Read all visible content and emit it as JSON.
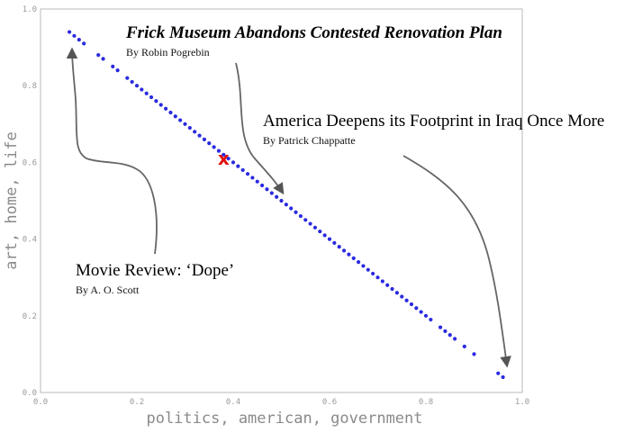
{
  "chart_data": {
    "type": "scatter",
    "xlabel": "politics, american, government",
    "ylabel": "art, home, life",
    "xlim": [
      0.0,
      1.0
    ],
    "ylim": [
      0.0,
      1.0
    ],
    "xticks": [
      "0.0",
      "0.2",
      "0.4",
      "0.6",
      "0.8",
      "1.0"
    ],
    "yticks": [
      "0.0",
      "0.2",
      "0.4",
      "0.6",
      "0.8",
      "1.0"
    ],
    "point_color": "#2a2ae0",
    "marker_color": "#e21010",
    "grid": false,
    "points": [
      [
        0.06,
        0.94
      ],
      [
        0.07,
        0.93
      ],
      [
        0.08,
        0.92
      ],
      [
        0.09,
        0.91
      ],
      [
        0.12,
        0.88
      ],
      [
        0.13,
        0.87
      ],
      [
        0.15,
        0.85
      ],
      [
        0.16,
        0.84
      ],
      [
        0.18,
        0.82
      ],
      [
        0.19,
        0.81
      ],
      [
        0.2,
        0.8
      ],
      [
        0.21,
        0.79
      ],
      [
        0.22,
        0.78
      ],
      [
        0.23,
        0.77
      ],
      [
        0.24,
        0.76
      ],
      [
        0.25,
        0.75
      ],
      [
        0.26,
        0.74
      ],
      [
        0.27,
        0.73
      ],
      [
        0.28,
        0.72
      ],
      [
        0.29,
        0.71
      ],
      [
        0.3,
        0.7
      ],
      [
        0.31,
        0.69
      ],
      [
        0.32,
        0.68
      ],
      [
        0.33,
        0.67
      ],
      [
        0.34,
        0.66
      ],
      [
        0.35,
        0.65
      ],
      [
        0.36,
        0.64
      ],
      [
        0.37,
        0.63
      ],
      [
        0.38,
        0.62
      ],
      [
        0.39,
        0.61
      ],
      [
        0.4,
        0.6
      ],
      [
        0.41,
        0.59
      ],
      [
        0.42,
        0.58
      ],
      [
        0.43,
        0.57
      ],
      [
        0.44,
        0.56
      ],
      [
        0.45,
        0.55
      ],
      [
        0.46,
        0.54
      ],
      [
        0.47,
        0.53
      ],
      [
        0.48,
        0.52
      ],
      [
        0.49,
        0.51
      ],
      [
        0.5,
        0.5
      ],
      [
        0.51,
        0.49
      ],
      [
        0.52,
        0.48
      ],
      [
        0.53,
        0.47
      ],
      [
        0.54,
        0.46
      ],
      [
        0.55,
        0.45
      ],
      [
        0.56,
        0.44
      ],
      [
        0.57,
        0.43
      ],
      [
        0.58,
        0.42
      ],
      [
        0.59,
        0.41
      ],
      [
        0.6,
        0.4
      ],
      [
        0.61,
        0.39
      ],
      [
        0.62,
        0.38
      ],
      [
        0.63,
        0.37
      ],
      [
        0.64,
        0.36
      ],
      [
        0.65,
        0.35
      ],
      [
        0.66,
        0.34
      ],
      [
        0.67,
        0.33
      ],
      [
        0.68,
        0.32
      ],
      [
        0.69,
        0.31
      ],
      [
        0.7,
        0.3
      ],
      [
        0.71,
        0.29
      ],
      [
        0.72,
        0.28
      ],
      [
        0.73,
        0.27
      ],
      [
        0.74,
        0.26
      ],
      [
        0.75,
        0.25
      ],
      [
        0.76,
        0.24
      ],
      [
        0.77,
        0.23
      ],
      [
        0.78,
        0.22
      ],
      [
        0.79,
        0.21
      ],
      [
        0.8,
        0.2
      ],
      [
        0.81,
        0.19
      ],
      [
        0.83,
        0.17
      ],
      [
        0.84,
        0.16
      ],
      [
        0.85,
        0.15
      ],
      [
        0.86,
        0.14
      ],
      [
        0.88,
        0.12
      ],
      [
        0.9,
        0.1
      ],
      [
        0.95,
        0.05
      ],
      [
        0.96,
        0.04
      ]
    ],
    "highlight": {
      "x": 0.38,
      "y": 0.61,
      "symbol": "x"
    },
    "annotations": [
      {
        "title": "Frick Museum Abandons Contested Renovation Plan",
        "byline": "By Robin Pogrebin",
        "bold": true,
        "target": [
          0.5,
          0.53
        ]
      },
      {
        "title": "America Deepens its Footprint in Iraq Once More",
        "byline": "By Patrick Chappatte",
        "bold": false,
        "target": [
          0.97,
          0.06
        ]
      },
      {
        "title": "Movie Review: ‘Dope’",
        "byline": "By A. O. Scott",
        "bold": false,
        "target": [
          0.06,
          0.93
        ]
      }
    ]
  }
}
